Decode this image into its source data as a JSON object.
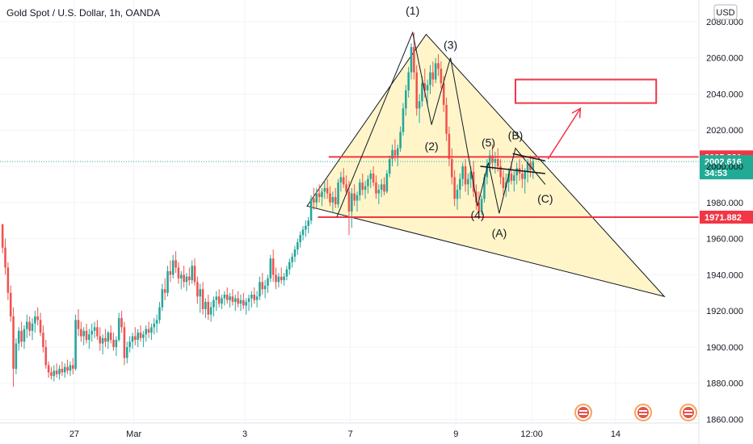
{
  "header": {
    "title": "Gold Spot / U.S. Dollar, 1h, OANDA"
  },
  "price_axis": {
    "currency": "USD"
  },
  "colors": {
    "up": "#26a69a",
    "down": "#ef5350",
    "level": "#f23645",
    "triangle_fill": "#fff3c0",
    "current": "#26a69a",
    "tag_red": "#f23645",
    "tag_green": "#22ab94"
  },
  "chart_data": {
    "type": "candlestick",
    "symbol": "Gold Spot / U.S. Dollar",
    "interval": "1h",
    "source": "OANDA",
    "ylim": [
      1858,
      2092
    ],
    "y_ticks": [
      "2080.000",
      "2060.000",
      "2040.000",
      "2020.000",
      "2000.000",
      "1980.000",
      "1960.000",
      "1940.000",
      "1920.000",
      "1900.000",
      "1880.000",
      "1860.000"
    ],
    "y_tick_values": [
      2080,
      2060,
      2040,
      2020,
      2000,
      1980,
      1960,
      1940,
      1920,
      1900,
      1880,
      1860
    ],
    "x_ticks": [
      "27",
      "Mar",
      "3",
      "7",
      "9",
      "12:00",
      "14"
    ],
    "x_tick_index": [
      27,
      49,
      90,
      129,
      168,
      196,
      227
    ],
    "current_price": {
      "value": 2002.616,
      "label": "2002.616",
      "countdown": "34:53"
    },
    "levels": [
      {
        "value": 2005.221,
        "label": "2005.221"
      },
      {
        "value": 1971.882,
        "label": "1971.882"
      }
    ],
    "wave_labels": [
      {
        "text": "(1)",
        "bar": 152,
        "price": 2084
      },
      {
        "text": "(2)",
        "bar": 159,
        "price": 2009
      },
      {
        "text": "(3)",
        "bar": 166,
        "price": 2065
      },
      {
        "text": "(4)",
        "bar": 176,
        "price": 1971
      },
      {
        "text": "(5)",
        "bar": 180,
        "price": 2011
      },
      {
        "text": "(A)",
        "bar": 184,
        "price": 1961
      },
      {
        "text": "(B)",
        "bar": 190,
        "price": 2015
      },
      {
        "text": "(C)",
        "bar": 201,
        "price": 1980
      }
    ],
    "triangle": [
      {
        "bar": 113,
        "price": 1978
      },
      {
        "bar": 157,
        "price": 2073
      },
      {
        "bar": 245,
        "price": 1928
      }
    ],
    "target_box": {
      "bar_start": 190,
      "bar_end": 242,
      "price_top": 2048,
      "price_bottom": 2035
    },
    "wave_path": [
      {
        "bar": 124,
        "price": 1972
      },
      {
        "bar": 152,
        "price": 2074
      },
      {
        "bar": 159,
        "price": 2023
      },
      {
        "bar": 166,
        "price": 2060
      },
      {
        "bar": 176,
        "price": 1978
      },
      {
        "bar": 180,
        "price": 2002
      },
      {
        "bar": 184,
        "price": 1974
      },
      {
        "bar": 190,
        "price": 2010
      },
      {
        "bar": 201,
        "price": 1990
      }
    ],
    "arrow": {
      "from": {
        "bar": 202,
        "price": 2004
      },
      "to": {
        "bar": 214,
        "price": 2032
      }
    },
    "triangle_lines": [
      {
        "from": {
          "bar": 177,
          "price": 2000
        },
        "to": {
          "bar": 201,
          "price": 1996
        }
      },
      {
        "from": {
          "bar": 189,
          "price": 2007
        },
        "to": {
          "bar": 201,
          "price": 2003
        }
      }
    ],
    "candles_ohlc": [
      [
        1968,
        1968,
        1952,
        1955
      ],
      [
        1955,
        1960,
        1940,
        1944
      ],
      [
        1944,
        1947,
        1926,
        1930
      ],
      [
        1930,
        1934,
        1914,
        1917
      ],
      [
        1917,
        1922,
        1878,
        1888
      ],
      [
        1888,
        1905,
        1885,
        1902
      ],
      [
        1902,
        1911,
        1898,
        1909
      ],
      [
        1909,
        1914,
        1900,
        1903
      ],
      [
        1903,
        1912,
        1899,
        1910
      ],
      [
        1910,
        1918,
        1905,
        1914
      ],
      [
        1914,
        1917,
        1906,
        1909
      ],
      [
        1909,
        1916,
        1904,
        1913
      ],
      [
        1913,
        1920,
        1908,
        1917
      ],
      [
        1917,
        1922,
        1912,
        1915
      ],
      [
        1915,
        1919,
        1906,
        1908
      ],
      [
        1908,
        1912,
        1897,
        1900
      ],
      [
        1900,
        1904,
        1888,
        1890
      ],
      [
        1890,
        1892,
        1883,
        1886
      ],
      [
        1886,
        1889,
        1882,
        1884
      ],
      [
        1884,
        1890,
        1881,
        1887
      ],
      [
        1887,
        1891,
        1883,
        1885
      ],
      [
        1885,
        1890,
        1882,
        1888
      ],
      [
        1888,
        1892,
        1884,
        1886
      ],
      [
        1886,
        1891,
        1883,
        1889
      ],
      [
        1889,
        1893,
        1885,
        1887
      ],
      [
        1887,
        1892,
        1884,
        1890
      ],
      [
        1890,
        1894,
        1885,
        1888
      ],
      [
        1888,
        1918,
        1887,
        1915
      ],
      [
        1915,
        1921,
        1906,
        1910
      ],
      [
        1910,
        1914,
        1903,
        1906
      ],
      [
        1906,
        1911,
        1901,
        1909
      ],
      [
        1909,
        1913,
        1902,
        1904
      ],
      [
        1904,
        1910,
        1899,
        1907
      ],
      [
        1907,
        1913,
        1903,
        1909
      ],
      [
        1909,
        1914,
        1905,
        1911
      ],
      [
        1911,
        1915,
        1904,
        1906
      ],
      [
        1906,
        1911,
        1898,
        1902
      ],
      [
        1902,
        1907,
        1896,
        1905
      ],
      [
        1905,
        1910,
        1900,
        1903
      ],
      [
        1903,
        1909,
        1899,
        1908
      ],
      [
        1908,
        1912,
        1902,
        1904
      ],
      [
        1904,
        1908,
        1898,
        1900
      ],
      [
        1900,
        1906,
        1895,
        1904
      ],
      [
        1904,
        1919,
        1903,
        1916
      ],
      [
        1916,
        1920,
        1908,
        1911
      ],
      [
        1911,
        1914,
        1890,
        1894
      ],
      [
        1894,
        1903,
        1891,
        1900
      ],
      [
        1900,
        1906,
        1897,
        1903
      ],
      [
        1903,
        1908,
        1899,
        1906
      ],
      [
        1906,
        1911,
        1901,
        1904
      ],
      [
        1904,
        1910,
        1900,
        1908
      ],
      [
        1908,
        1912,
        1903,
        1905
      ],
      [
        1905,
        1909,
        1900,
        1907
      ],
      [
        1907,
        1912,
        1903,
        1910
      ],
      [
        1910,
        1914,
        1905,
        1908
      ],
      [
        1908,
        1913,
        1904,
        1911
      ],
      [
        1911,
        1916,
        1907,
        1913
      ],
      [
        1913,
        1918,
        1908,
        1915
      ],
      [
        1915,
        1925,
        1913,
        1922
      ],
      [
        1922,
        1935,
        1920,
        1932
      ],
      [
        1932,
        1938,
        1926,
        1930
      ],
      [
        1930,
        1945,
        1928,
        1942
      ],
      [
        1942,
        1948,
        1936,
        1940
      ],
      [
        1940,
        1951,
        1938,
        1948
      ],
      [
        1948,
        1953,
        1941,
        1944
      ],
      [
        1944,
        1947,
        1935,
        1938
      ],
      [
        1938,
        1942,
        1932,
        1940
      ],
      [
        1940,
        1945,
        1933,
        1936
      ],
      [
        1936,
        1941,
        1931,
        1939
      ],
      [
        1939,
        1944,
        1934,
        1937
      ],
      [
        1937,
        1948,
        1935,
        1945
      ],
      [
        1945,
        1949,
        1934,
        1936
      ],
      [
        1936,
        1939,
        1924,
        1928
      ],
      [
        1928,
        1935,
        1919,
        1932
      ],
      [
        1932,
        1936,
        1918,
        1921
      ],
      [
        1921,
        1927,
        1916,
        1925
      ],
      [
        1925,
        1929,
        1915,
        1918
      ],
      [
        1918,
        1925,
        1914,
        1922
      ],
      [
        1922,
        1928,
        1917,
        1926
      ],
      [
        1926,
        1931,
        1920,
        1928
      ],
      [
        1928,
        1932,
        1922,
        1924
      ],
      [
        1924,
        1929,
        1921,
        1927
      ],
      [
        1927,
        1931,
        1923,
        1929
      ],
      [
        1929,
        1933,
        1924,
        1926
      ],
      [
        1926,
        1930,
        1922,
        1928
      ],
      [
        1928,
        1932,
        1923,
        1925
      ],
      [
        1925,
        1929,
        1920,
        1927
      ],
      [
        1927,
        1931,
        1922,
        1924
      ],
      [
        1924,
        1929,
        1920,
        1926
      ],
      [
        1926,
        1930,
        1921,
        1923
      ],
      [
        1923,
        1927,
        1918,
        1925
      ],
      [
        1925,
        1929,
        1920,
        1927
      ],
      [
        1927,
        1931,
        1922,
        1929
      ],
      [
        1929,
        1933,
        1924,
        1926
      ],
      [
        1926,
        1931,
        1922,
        1928
      ],
      [
        1928,
        1939,
        1926,
        1936
      ],
      [
        1936,
        1941,
        1929,
        1932
      ],
      [
        1932,
        1937,
        1927,
        1934
      ],
      [
        1934,
        1940,
        1930,
        1938
      ],
      [
        1938,
        1951,
        1936,
        1949
      ],
      [
        1949,
        1954,
        1936,
        1940
      ],
      [
        1940,
        1944,
        1932,
        1936
      ],
      [
        1936,
        1941,
        1933,
        1939
      ],
      [
        1939,
        1944,
        1935,
        1937
      ],
      [
        1937,
        1941,
        1934,
        1939
      ],
      [
        1939,
        1945,
        1937,
        1943
      ],
      [
        1943,
        1949,
        1940,
        1947
      ],
      [
        1947,
        1952,
        1944,
        1950
      ],
      [
        1950,
        1956,
        1947,
        1954
      ],
      [
        1954,
        1960,
        1951,
        1958
      ],
      [
        1958,
        1964,
        1955,
        1962
      ],
      [
        1962,
        1967,
        1959,
        1965
      ],
      [
        1965,
        1970,
        1961,
        1967
      ],
      [
        1967,
        1972,
        1963,
        1970
      ],
      [
        1970,
        1984,
        1968,
        1982
      ],
      [
        1982,
        1988,
        1976,
        1980
      ],
      [
        1980,
        1988,
        1977,
        1985
      ],
      [
        1985,
        1990,
        1980,
        1983
      ],
      [
        1983,
        1988,
        1978,
        1986
      ],
      [
        1986,
        1992,
        1982,
        1988
      ],
      [
        1988,
        1993,
        1982,
        1985
      ],
      [
        1985,
        1989,
        1978,
        1980
      ],
      [
        1980,
        1986,
        1974,
        1983
      ],
      [
        1983,
        1988,
        1977,
        1979
      ],
      [
        1979,
        1993,
        1977,
        1991
      ],
      [
        1991,
        1997,
        1986,
        1994
      ],
      [
        1994,
        1999,
        1988,
        1990
      ],
      [
        1990,
        1995,
        1984,
        1986
      ],
      [
        1986,
        1992,
        1962,
        1975
      ],
      [
        1975,
        1988,
        1966,
        1985
      ],
      [
        1985,
        1990,
        1978,
        1981
      ],
      [
        1981,
        1986,
        1975,
        1984
      ],
      [
        1984,
        1993,
        1981,
        1991
      ],
      [
        1991,
        1996,
        1984,
        1987
      ],
      [
        1987,
        1992,
        1982,
        1989
      ],
      [
        1989,
        1995,
        1985,
        1993
      ],
      [
        1993,
        1998,
        1988,
        1996
      ],
      [
        1996,
        2000,
        1989,
        1991
      ],
      [
        1991,
        1995,
        1982,
        1985
      ],
      [
        1985,
        1990,
        1979,
        1987
      ],
      [
        1987,
        1993,
        1983,
        1990
      ],
      [
        1990,
        1994,
        1984,
        1986
      ],
      [
        1986,
        1998,
        1985,
        1996
      ],
      [
        1996,
        2006,
        1994,
        2004
      ],
      [
        2004,
        2012,
        2000,
        2009
      ],
      [
        2009,
        2015,
        2003,
        2006
      ],
      [
        2006,
        2012,
        2000,
        2010
      ],
      [
        2010,
        2022,
        2008,
        2019
      ],
      [
        2019,
        2035,
        2017,
        2032
      ],
      [
        2032,
        2045,
        2028,
        2042
      ],
      [
        2042,
        2055,
        2038,
        2052
      ],
      [
        2052,
        2068,
        2048,
        2066
      ],
      [
        2066,
        2074,
        2048,
        2052
      ],
      [
        2052,
        2056,
        2028,
        2032
      ],
      [
        2032,
        2040,
        2024,
        2036
      ],
      [
        2036,
        2050,
        2033,
        2046
      ],
      [
        2046,
        2054,
        2038,
        2042
      ],
      [
        2042,
        2048,
        2034,
        2045
      ],
      [
        2045,
        2056,
        2040,
        2052
      ],
      [
        2052,
        2058,
        2044,
        2048
      ],
      [
        2048,
        2060,
        2046,
        2057
      ],
      [
        2057,
        2062,
        2050,
        2054
      ],
      [
        2054,
        2058,
        2043,
        2046
      ],
      [
        2046,
        2050,
        2030,
        2034
      ],
      [
        2034,
        2038,
        2014,
        2018
      ],
      [
        2018,
        2022,
        2000,
        2004
      ],
      [
        2004,
        2010,
        1990,
        1994
      ],
      [
        1994,
        1998,
        1978,
        1982
      ],
      [
        1982,
        1990,
        1976,
        1987
      ],
      [
        1987,
        1996,
        1982,
        1993
      ],
      [
        1993,
        2002,
        1989,
        2000
      ],
      [
        2000,
        2004,
        1986,
        1990
      ],
      [
        1990,
        1996,
        1984,
        1993
      ],
      [
        1993,
        2000,
        1988,
        1997
      ],
      [
        1997,
        2003,
        1983,
        1986
      ],
      [
        1986,
        1990,
        1976,
        1980
      ],
      [
        1980,
        1986,
        1972,
        1975
      ],
      [
        1975,
        1984,
        1973,
        1982
      ],
      [
        1982,
        1996,
        1980,
        1994
      ],
      [
        1994,
        2004,
        1990,
        2001
      ],
      [
        2001,
        2009,
        1997,
        2006
      ],
      [
        2006,
        2012,
        1998,
        2002
      ],
      [
        2002,
        2008,
        1996,
        2004
      ],
      [
        2004,
        2010,
        1997,
        2000
      ],
      [
        2000,
        2004,
        1990,
        1994
      ],
      [
        1994,
        1998,
        1984,
        1988
      ],
      [
        1988,
        1996,
        1983,
        1991
      ],
      [
        1991,
        1999,
        1986,
        1996
      ],
      [
        1996,
        2003,
        1990,
        1992
      ],
      [
        1992,
        1998,
        1986,
        1995
      ],
      [
        1995,
        2002,
        1990,
        1999
      ],
      [
        1999,
        2004,
        1992,
        1996
      ],
      [
        1996,
        2001,
        1988,
        1993
      ],
      [
        1993,
        1999,
        1985,
        1997
      ],
      [
        1997,
        2004,
        1991,
        2002
      ],
      [
        2002,
        2006,
        1994,
        1998
      ],
      [
        1998,
        2004,
        1993,
        2002.616
      ]
    ]
  }
}
